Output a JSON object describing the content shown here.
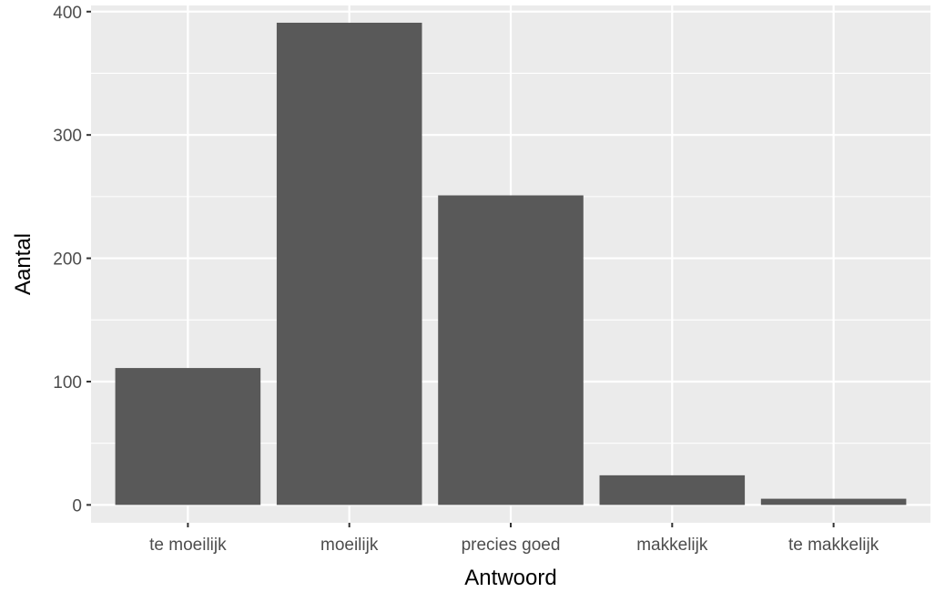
{
  "chart_data": {
    "type": "bar",
    "title": "",
    "xlabel": "Antwoord",
    "ylabel": "Aantal",
    "categories": [
      "te moeilijk",
      "moeilijk",
      "precies goed",
      "makkelijk",
      "te makkelijk"
    ],
    "values": [
      111,
      391,
      251,
      24,
      5
    ],
    "ylim": [
      -14.5,
      405
    ],
    "yticks": [
      0,
      100,
      200,
      300,
      400
    ],
    "grid": true,
    "legend": "none",
    "colors": {
      "bar": "#595959",
      "panel": "#ebebeb",
      "grid": "#ffffff",
      "tick_text": "#4d4d4d",
      "tick_mark": "#333333"
    }
  }
}
